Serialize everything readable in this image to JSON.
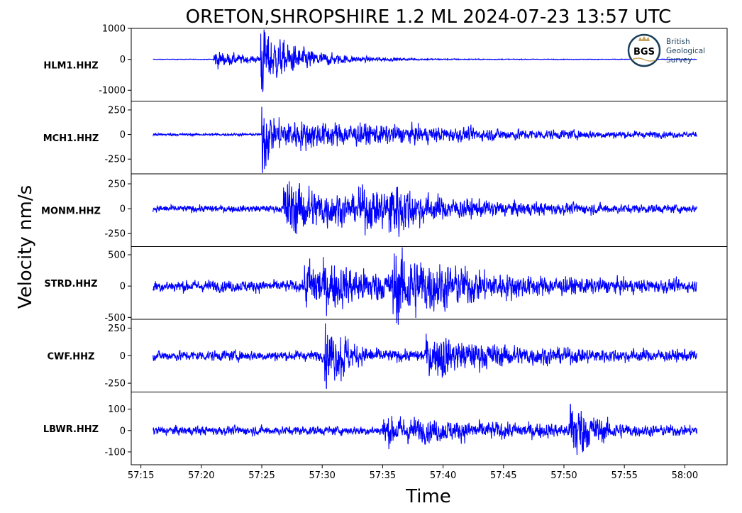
{
  "chart_data": {
    "type": "line",
    "title": "ORETON,SHROPSHIRE 1.2 ML   2024-07-23 13:57 UTC",
    "xlabel": "Time",
    "ylabel": "Velocity nm/s",
    "x_ticks": [
      "57:15",
      "57:20",
      "57:25",
      "57:30",
      "57:35",
      "57:40",
      "57:45",
      "57:50",
      "57:55",
      "58:00"
    ],
    "x_tick_seconds": [
      15,
      20,
      25,
      30,
      35,
      40,
      45,
      50,
      55,
      60
    ],
    "xlim_seconds": [
      14.2,
      63.5
    ],
    "trace_start_seconds": 16,
    "trace_end_seconds": 61,
    "grid": false,
    "line_color": "#0000ff",
    "panels": [
      {
        "name": "HLM1.HHZ",
        "ylim": [
          -1350,
          1000
        ],
        "yticks": [
          1000,
          0,
          -1000
        ],
        "ytick_labels": [
          "1000",
          "0",
          "-1000"
        ],
        "noise": 8,
        "events": [
          {
            "t": 21.0,
            "amp": 240,
            "decay": 3.0
          },
          {
            "t": 24.9,
            "amp": 1150,
            "decay": 1.0
          },
          {
            "t": 25.5,
            "amp": 650,
            "decay": 3.5
          }
        ]
      },
      {
        "name": "MCH1.HHZ",
        "ylim": [
          -400,
          340
        ],
        "yticks": [
          250,
          0,
          -250
        ],
        "ytick_labels": [
          "250",
          "0",
          "-250"
        ],
        "noise": 10,
        "events": [
          {
            "t": 25.0,
            "amp": 380,
            "decay": 0.9
          },
          {
            "t": 25.4,
            "amp": 130,
            "decay": 16
          },
          {
            "t": 33.5,
            "amp": 60,
            "decay": 4
          }
        ]
      },
      {
        "name": "MONM.HHZ",
        "ylim": [
          -380,
          350
        ],
        "yticks": [
          250,
          0,
          -250
        ],
        "ytick_labels": [
          "250",
          "0",
          "-250"
        ],
        "noise": 28,
        "events": [
          {
            "t": 26.8,
            "amp": 220,
            "decay": 6
          },
          {
            "t": 33.0,
            "amp": 160,
            "decay": 8
          },
          {
            "t": 35.5,
            "amp": 260,
            "decay": 3
          }
        ]
      },
      {
        "name": "STRD.HHZ",
        "ylim": [
          -530,
          630
        ],
        "yticks": [
          500,
          0,
          -500
        ],
        "ytick_labels": [
          "500",
          "0",
          "-500"
        ],
        "noise": 75,
        "events": [
          {
            "t": 28.5,
            "amp": 300,
            "decay": 7
          },
          {
            "t": 35.8,
            "amp": 450,
            "decay": 6
          }
        ]
      },
      {
        "name": "CWF.HHZ",
        "ylim": [
          -330,
          330
        ],
        "yticks": [
          250,
          0,
          -250
        ],
        "ytick_labels": [
          "250",
          "0",
          "-250"
        ],
        "noise": 38,
        "events": [
          {
            "t": 30.2,
            "amp": 220,
            "decay": 1.6
          },
          {
            "t": 31.5,
            "amp": 200,
            "decay": 0.8
          },
          {
            "t": 39.8,
            "amp": 260,
            "decay": 0.6
          },
          {
            "t": 38.5,
            "amp": 110,
            "decay": 7
          }
        ]
      },
      {
        "name": "LBWR.HHZ",
        "ylim": [
          -160,
          180
        ],
        "yticks": [
          100,
          0,
          -100
        ],
        "ytick_labels": [
          "100",
          "0",
          "-100"
        ],
        "noise": 17,
        "events": [
          {
            "t": 35.0,
            "amp": 40,
            "decay": 10
          },
          {
            "t": 50.5,
            "amp": 130,
            "decay": 1.8
          }
        ]
      }
    ]
  },
  "logo": {
    "monogram": "BGS",
    "line1": "British",
    "line2": "Geological",
    "line3": "Survey",
    "ring_color": "#1c3f5a",
    "accent_color": "#c9a25a"
  }
}
